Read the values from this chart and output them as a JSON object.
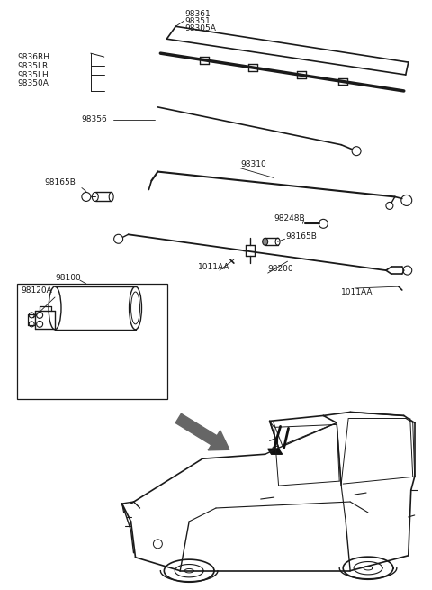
{
  "bg_color": "#ffffff",
  "line_color": "#1a1a1a",
  "gray_arrow": "#555555",
  "fig_width": 4.8,
  "fig_height": 6.55,
  "dpi": 100,
  "labels": {
    "top_right": [
      "98361",
      "98351",
      "98305A"
    ],
    "left_group": [
      "9836RH",
      "9835LR",
      "9835LH",
      "98350A"
    ],
    "blade3": "98356",
    "arm": "98310",
    "linkage_left": "98165B",
    "pivot_small": "98248B",
    "linkage_right": "98165B",
    "motor_box": "98100",
    "motor_inner": "98120A",
    "bolt_left": "1011AA",
    "link_mid": "98200",
    "bolt_right": "1011AA"
  }
}
